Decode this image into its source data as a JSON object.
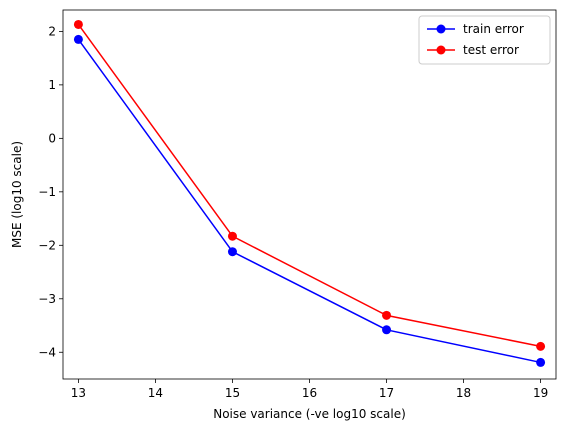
{
  "chart_data": {
    "type": "line",
    "xlabel": "Noise variance (-ve log10 scale)",
    "ylabel": "MSE (log10 scale)",
    "xlim": [
      12.8,
      19.2
    ],
    "ylim": [
      -4.5,
      2.4
    ],
    "xticks": [
      13,
      14,
      15,
      16,
      17,
      18,
      19
    ],
    "yticks": [
      2,
      1,
      0,
      -1,
      -2,
      -3,
      -4
    ],
    "ytick_labels": [
      "2",
      "1",
      "0",
      "−1",
      "−2",
      "−3",
      "−4"
    ],
    "legend_position": "top-right",
    "grid": false,
    "x": [
      13,
      15,
      17,
      19
    ],
    "series": [
      {
        "name": "train error",
        "color": "#0000ff",
        "values": [
          1.85,
          -2.12,
          -3.58,
          -4.19
        ]
      },
      {
        "name": "test error",
        "color": "#ff0000",
        "values": [
          2.13,
          -1.83,
          -3.31,
          -3.89
        ]
      }
    ]
  }
}
